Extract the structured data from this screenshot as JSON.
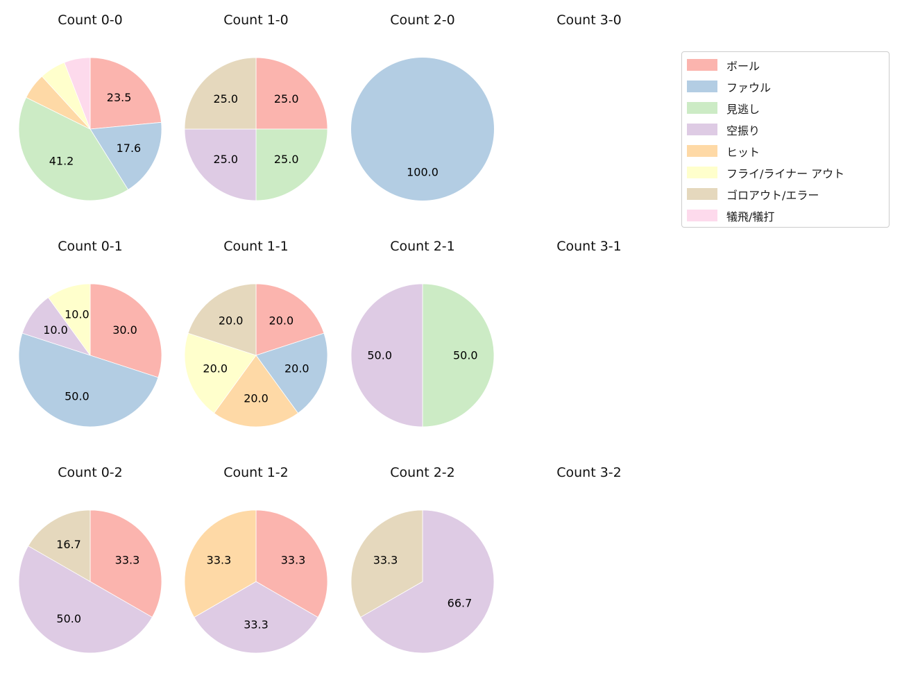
{
  "colors": {
    "ボール": "#fbb4ae",
    "ファウル": "#b3cde3",
    "見逃し": "#ccebc5",
    "空振り": "#decbe4",
    "ヒット": "#fed9a6",
    "フライ/ライナー アウト": "#ffffcc",
    "ゴロアウト/エラー": "#e5d8bd",
    "犠飛/犠打": "#fddaec"
  },
  "legend": {
    "items": [
      {
        "label": "ボール",
        "color": "#fbb4ae"
      },
      {
        "label": "ファウル",
        "color": "#b3cde3"
      },
      {
        "label": "見逃し",
        "color": "#ccebc5"
      },
      {
        "label": "空振り",
        "color": "#decbe4"
      },
      {
        "label": "ヒット",
        "color": "#fed9a6"
      },
      {
        "label": "フライ/ライナー アウト",
        "color": "#ffffcc"
      },
      {
        "label": "ゴロアウト/エラー",
        "color": "#e5d8bd"
      },
      {
        "label": "犠飛/犠打",
        "color": "#fddaec"
      }
    ]
  },
  "chart_data": [
    {
      "type": "pie",
      "title": "Count 0-0",
      "start_angle_deg": 90,
      "direction": "clockwise",
      "categories": [
        "ボール",
        "ファウル",
        "見逃し",
        "ヒット",
        "フライ/ライナー アウト",
        "犠飛/犠打"
      ],
      "values": [
        23.5,
        17.6,
        41.2,
        5.9,
        5.9,
        5.9
      ],
      "pct_labels": [
        "23.5",
        "17.6",
        "41.2",
        "",
        "",
        ""
      ]
    },
    {
      "type": "pie",
      "title": "Count 1-0",
      "start_angle_deg": 90,
      "direction": "clockwise",
      "categories": [
        "ボール",
        "見逃し",
        "空振り",
        "ゴロアウト/エラー"
      ],
      "values": [
        25.0,
        25.0,
        25.0,
        25.0
      ],
      "pct_labels": [
        "25.0",
        "25.0",
        "25.0",
        "25.0"
      ]
    },
    {
      "type": "pie",
      "title": "Count 2-0",
      "start_angle_deg": 90,
      "direction": "clockwise",
      "categories": [
        "ファウル"
      ],
      "values": [
        100.0
      ],
      "pct_labels": [
        "100.0"
      ]
    },
    {
      "type": "pie",
      "title": "Count 3-0",
      "start_angle_deg": 90,
      "direction": "clockwise",
      "categories": [],
      "values": [],
      "pct_labels": []
    },
    {
      "type": "pie",
      "title": "Count 0-1",
      "start_angle_deg": 90,
      "direction": "clockwise",
      "categories": [
        "ボール",
        "ファウル",
        "空振り",
        "フライ/ライナー アウト"
      ],
      "values": [
        30.0,
        50.0,
        10.0,
        10.0
      ],
      "pct_labels": [
        "30.0",
        "50.0",
        "10.0",
        "10.0"
      ]
    },
    {
      "type": "pie",
      "title": "Count 1-1",
      "start_angle_deg": 90,
      "direction": "clockwise",
      "categories": [
        "ボール",
        "ファウル",
        "ヒット",
        "フライ/ライナー アウト",
        "ゴロアウト/エラー"
      ],
      "values": [
        20.0,
        20.0,
        20.0,
        20.0,
        20.0
      ],
      "pct_labels": [
        "20.0",
        "20.0",
        "20.0",
        "20.0",
        "20.0"
      ]
    },
    {
      "type": "pie",
      "title": "Count 2-1",
      "start_angle_deg": 90,
      "direction": "clockwise",
      "categories": [
        "見逃し",
        "空振り"
      ],
      "values": [
        50.0,
        50.0
      ],
      "pct_labels": [
        "50.0",
        "50.0"
      ]
    },
    {
      "type": "pie",
      "title": "Count 3-1",
      "start_angle_deg": 90,
      "direction": "clockwise",
      "categories": [],
      "values": [],
      "pct_labels": []
    },
    {
      "type": "pie",
      "title": "Count 0-2",
      "start_angle_deg": 90,
      "direction": "clockwise",
      "categories": [
        "ボール",
        "空振り",
        "ゴロアウト/エラー"
      ],
      "values": [
        33.3,
        50.0,
        16.7
      ],
      "pct_labels": [
        "33.3",
        "50.0",
        "16.7"
      ]
    },
    {
      "type": "pie",
      "title": "Count 1-2",
      "start_angle_deg": 90,
      "direction": "clockwise",
      "categories": [
        "ボール",
        "空振り",
        "ヒット"
      ],
      "values": [
        33.3,
        33.3,
        33.3
      ],
      "pct_labels": [
        "33.3",
        "33.3",
        "33.3"
      ]
    },
    {
      "type": "pie",
      "title": "Count 2-2",
      "start_angle_deg": 90,
      "direction": "clockwise",
      "categories": [
        "空振り",
        "ゴロアウト/エラー"
      ],
      "values": [
        66.7,
        33.3
      ],
      "pct_labels": [
        "66.7",
        "33.3"
      ]
    },
    {
      "type": "pie",
      "title": "Count 3-2",
      "start_angle_deg": 90,
      "direction": "clockwise",
      "categories": [],
      "values": [],
      "pct_labels": []
    }
  ]
}
